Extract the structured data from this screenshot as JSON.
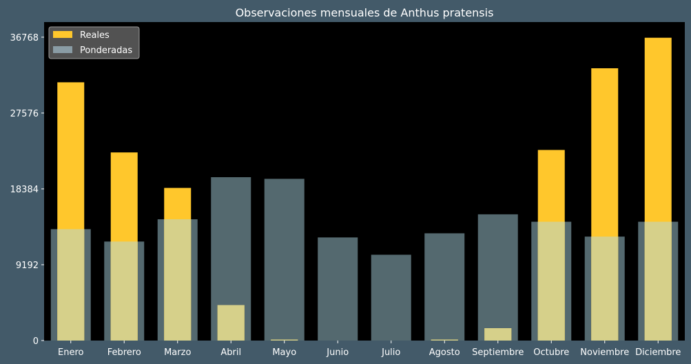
{
  "chart_data": {
    "type": "bar",
    "title": "Observaciones mensuales de Anthus pratensis",
    "xlabel": "",
    "ylabel": "",
    "categories": [
      "Enero",
      "Febrero",
      "Marzo",
      "Abril",
      "Mayo",
      "Junio",
      "Julio",
      "Agosto",
      "Septiembre",
      "Octubre",
      "Noviembre",
      "Diciembre"
    ],
    "yticks": [
      "0",
      "9192",
      "18384",
      "27576",
      "36768"
    ],
    "ylim": [
      0,
      38600
    ],
    "grid": false,
    "legend_position": "top-left",
    "series": [
      {
        "name": "Reales",
        "color": "#ffc72c",
        "values": [
          31300,
          22800,
          18500,
          4300,
          120,
          0,
          0,
          120,
          1500,
          23100,
          33000,
          36700
        ]
      },
      {
        "name": "Ponderadas",
        "color": "#8a9ca5",
        "values": [
          13500,
          12000,
          14700,
          19800,
          19600,
          12500,
          10400,
          13000,
          15300,
          14400,
          12600,
          14400
        ]
      }
    ],
    "colors": {
      "figure_background": "#435a69",
      "plot_background": "#000000",
      "legend_background": "#525252",
      "overlap": "#d6d08a"
    }
  }
}
